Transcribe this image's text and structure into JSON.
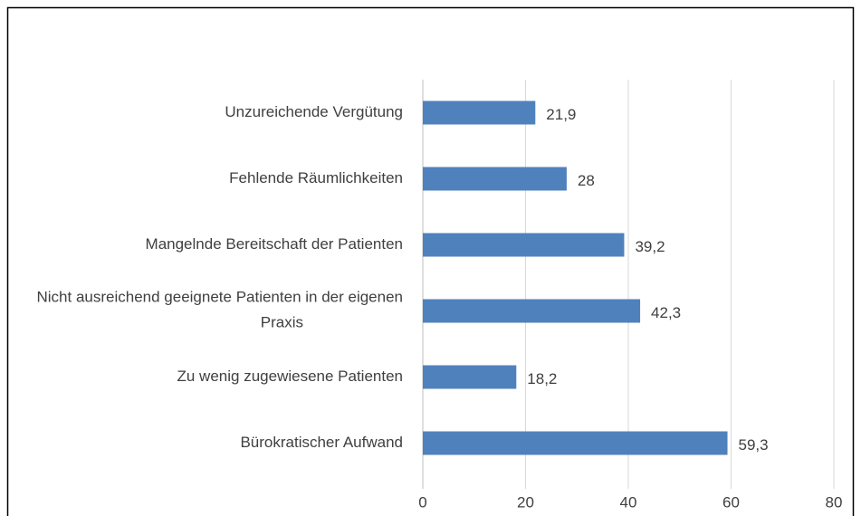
{
  "chart_data": {
    "type": "bar",
    "orientation": "horizontal",
    "categories": [
      "Unzureichende Vergütung",
      "Fehlende Räumlichkeiten",
      "Mangelnde Bereitschaft der Patienten",
      "Nicht ausreichend geeignete Patienten in der eigenen Praxis",
      "Zu wenig zugewiesene Patienten",
      "Bürokratischer Aufwand"
    ],
    "values": [
      21.9,
      28,
      39.2,
      42.3,
      18.2,
      59.3
    ],
    "value_labels": [
      "21,9",
      "28",
      "39,2",
      "42,3",
      "18,2",
      "59,3"
    ],
    "color": "#4f81bd",
    "xlim": [
      0,
      80
    ],
    "xticks": [
      0,
      20,
      40,
      60,
      80
    ],
    "grid": true
  }
}
